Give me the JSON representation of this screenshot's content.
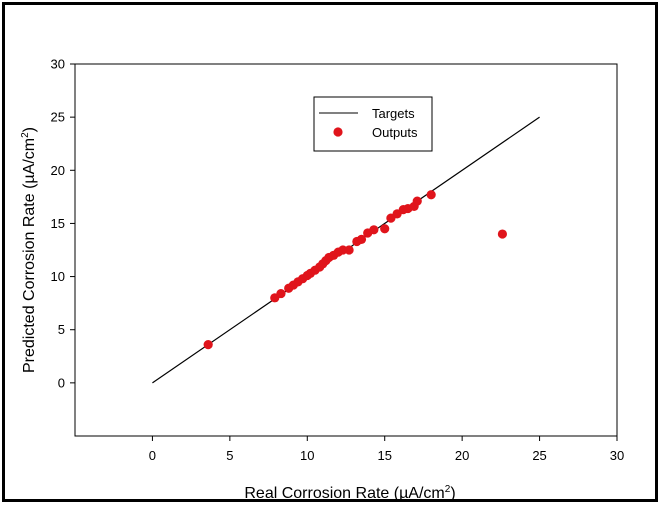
{
  "chart_data": {
    "type": "scatter",
    "xlabel": "Real Corrosion Rate (µA/cm",
    "xlabel_sup": "2",
    "xlabel_close": ")",
    "ylabel": "Predicted Corrosion Rate (µA/cm",
    "ylabel_sup": "2",
    "ylabel_close": ")",
    "xlim": [
      -5,
      30
    ],
    "ylim": [
      -5,
      30
    ],
    "xticks": [
      "0",
      "5",
      "10",
      "15",
      "20",
      "25",
      "30"
    ],
    "yticks": [
      "0",
      "5",
      "10",
      "15",
      "20",
      "25",
      "30"
    ],
    "grid": false,
    "legend_position": "top-center",
    "series": [
      {
        "name": "Targets",
        "kind": "line",
        "color": "#000000",
        "points": [
          [
            0,
            0
          ],
          [
            25,
            25
          ]
        ]
      },
      {
        "name": "Outputs",
        "kind": "scatter",
        "color": "#e0141b",
        "points": [
          [
            3.6,
            3.6
          ],
          [
            7.9,
            8.0
          ],
          [
            8.3,
            8.4
          ],
          [
            8.8,
            8.9
          ],
          [
            9.1,
            9.2
          ],
          [
            9.4,
            9.5
          ],
          [
            9.7,
            9.8
          ],
          [
            10.0,
            10.1
          ],
          [
            10.2,
            10.3
          ],
          [
            10.5,
            10.6
          ],
          [
            10.8,
            10.9
          ],
          [
            11.0,
            11.2
          ],
          [
            11.2,
            11.5
          ],
          [
            11.4,
            11.8
          ],
          [
            11.7,
            12.0
          ],
          [
            12.0,
            12.3
          ],
          [
            12.3,
            12.5
          ],
          [
            12.7,
            12.5
          ],
          [
            13.2,
            13.3
          ],
          [
            13.5,
            13.5
          ],
          [
            13.9,
            14.1
          ],
          [
            14.3,
            14.4
          ],
          [
            15.0,
            14.5
          ],
          [
            15.4,
            15.5
          ],
          [
            15.8,
            15.9
          ],
          [
            16.2,
            16.3
          ],
          [
            16.5,
            16.4
          ],
          [
            16.9,
            16.6
          ],
          [
            17.1,
            17.1
          ],
          [
            18.0,
            17.7
          ],
          [
            22.6,
            14.0
          ]
        ]
      }
    ]
  }
}
